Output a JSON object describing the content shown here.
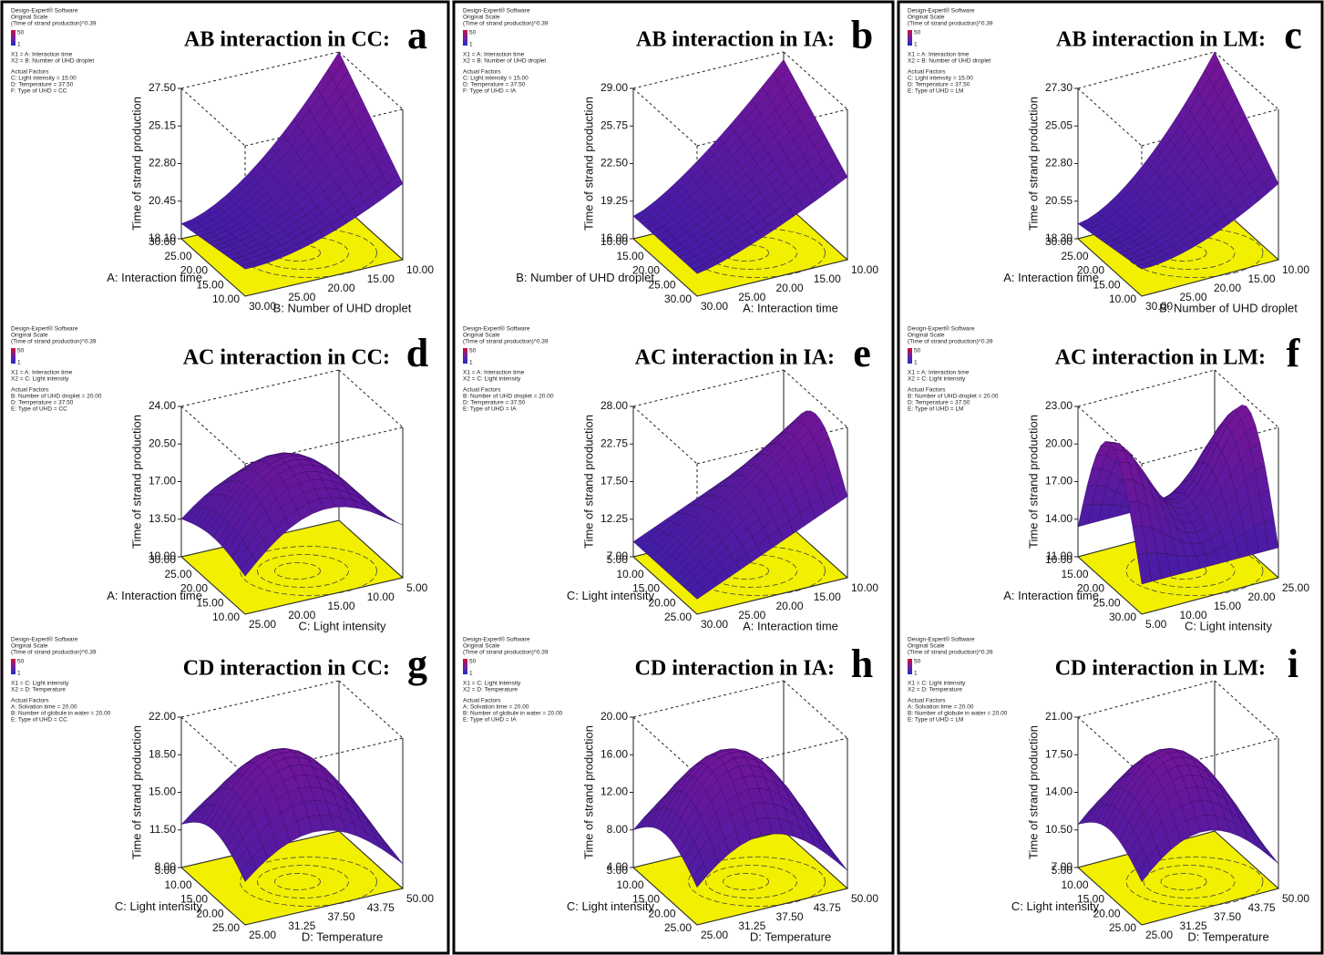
{
  "panels": [
    {
      "letter": "a",
      "title": "AB interaction in CC:",
      "legend": [
        "Design-Expert® Software",
        "Original Scale",
        "(Time of strand production)^0.39",
        "X1 = A: Interaction time",
        "X2 = B: Number of UHD droplet",
        "Actual Factors",
        "C: Light intensity = 15.00",
        "D: Temperature = 37.50",
        "F: Type of UHD = CC"
      ],
      "scale": [
        "50",
        "1"
      ],
      "z_label": "Time of strand production",
      "z_ticks": [
        "18.10",
        "20.45",
        "22.80",
        "25.15",
        "27.50"
      ],
      "left_label": "A: Interaction time",
      "left_ticks": [
        "30.00",
        "25.00",
        "20.00",
        "15.00",
        "10.00"
      ],
      "right_label": "B: Number of UHD droplet",
      "right_ticks": [
        "30.00",
        "25.00",
        "20.00",
        "15.00",
        "10.00"
      ]
    },
    {
      "letter": "b",
      "title": "AB interaction in IA:",
      "legend": [
        "Design-Expert® Software",
        "Original Scale",
        "(Time of strand production)^0.39",
        "X1 = A: Interaction time",
        "X2 = B: Number of UHD droplet",
        "Actual Factors",
        "C: Light intensity = 15.00",
        "D: Temperature = 37.50",
        "F: Type of UHD = IA"
      ],
      "scale": [
        "50",
        "1"
      ],
      "z_label": "Time of strand production",
      "z_ticks": [
        "16.00",
        "19.25",
        "22.50",
        "25.75",
        "29.00"
      ],
      "left_label": "B: Number of UHD droplet",
      "left_ticks": [
        "10.00",
        "15.00",
        "20.00",
        "25.00",
        "30.00"
      ],
      "right_label": "A: Interaction time",
      "right_ticks": [
        "30.00",
        "25.00",
        "20.00",
        "15.00",
        "10.00"
      ]
    },
    {
      "letter": "c",
      "title": "AB interaction in LM:",
      "legend": [
        "Design-Expert® Software",
        "Original Scale",
        "(Time of strand production)^0.39",
        "X1 = A: Interaction time",
        "X2 = B: Number of UHD droplet",
        "Actual Factors",
        "C: Light intensity = 15.00",
        "D: Temperature = 37.50",
        "E: Type of UHD = LM"
      ],
      "scale": [
        "50",
        "1"
      ],
      "z_label": "Time of strand production",
      "z_ticks": [
        "18.30",
        "20.55",
        "22.80",
        "25.05",
        "27.30"
      ],
      "left_label": "A: Interaction time",
      "left_ticks": [
        "30.00",
        "25.00",
        "20.00",
        "15.00",
        "10.00"
      ],
      "right_label": "B: Number of UHD droplet",
      "right_ticks": [
        "30.00",
        "25.00",
        "20.00",
        "15.00",
        "10.00"
      ]
    },
    {
      "letter": "d",
      "title": "AC interaction in CC:",
      "legend": [
        "Design-Expert® Software",
        "Original Scale",
        "(Time of strand production)^0.39",
        "X1 = A: Interaction time",
        "X2 = C: Light intensity",
        "Actual Factors",
        "B: Number of UHD droplet = 20.00",
        "D: Temperature = 37.50",
        "E: Type of UHD = CC"
      ],
      "scale": [
        "50",
        "1"
      ],
      "z_label": "Time of strand production",
      "z_ticks": [
        "10.00",
        "13.50",
        "17.00",
        "20.50",
        "24.00"
      ],
      "left_label": "A: Interaction time",
      "left_ticks": [
        "30.00",
        "25.00",
        "20.00",
        "15.00",
        "10.00"
      ],
      "right_label": "C: Light intensity",
      "right_ticks": [
        "25.00",
        "20.00",
        "15.00",
        "10.00",
        "5.00"
      ]
    },
    {
      "letter": "e",
      "title": "AC interaction in IA:",
      "legend": [
        "Design-Expert® Software",
        "Original Scale",
        "(Time of strand production)^0.39",
        "X1 = A: Interaction time",
        "X2 = C: Light intensity",
        "Actual Factors",
        "B: Number of UHD droplet = 20.00",
        "D: Temperature = 37.50",
        "E: Type of UHD = IA"
      ],
      "scale": [
        "50",
        "1"
      ],
      "z_label": "Time of strand production",
      "z_ticks": [
        "7.00",
        "12.25",
        "17.50",
        "22.75",
        "28.00"
      ],
      "left_label": "C: Light intensity",
      "left_ticks": [
        "5.00",
        "10.00",
        "15.00",
        "20.00",
        "25.00"
      ],
      "right_label": "A: Interaction time",
      "right_ticks": [
        "30.00",
        "25.00",
        "20.00",
        "15.00",
        "10.00"
      ]
    },
    {
      "letter": "f",
      "title": "AC interaction in LM:",
      "legend": [
        "Design-Expert® Software",
        "Original Scale",
        "(Time of strand production)^0.39",
        "X1 = A: Interaction time",
        "X2 = C: Light intensity",
        "Actual Factors",
        "B: Number of UHD droplet = 20.00",
        "D: Temperature = 37.50",
        "E: Type of UHD = LM"
      ],
      "scale": [
        "50",
        "1"
      ],
      "z_label": "Time of strand production",
      "z_ticks": [
        "11.00",
        "14.00",
        "17.00",
        "20.00",
        "23.00"
      ],
      "left_label": "A: Interaction time",
      "left_ticks": [
        "10.00",
        "15.00",
        "20.00",
        "25.00",
        "30.00"
      ],
      "right_label": "C: Light intensity",
      "right_ticks": [
        "5.00",
        "10.00",
        "15.00",
        "20.00",
        "25.00"
      ]
    },
    {
      "letter": "g",
      "title": "CD interaction in CC:",
      "legend": [
        "Design-Expert® Software",
        "Original Scale",
        "(Time of strand production)^0.39",
        "X1 = C: Light intensity",
        "X2 = D: Temperature",
        "Actual Factors",
        "A: Solvation time = 20.00",
        "B: Number of globule in water = 20.00",
        "E: Type of UHD = CC"
      ],
      "scale": [
        "50",
        "1"
      ],
      "z_label": "Time of strand production",
      "z_ticks": [
        "8.00",
        "11.50",
        "15.00",
        "18.50",
        "22.00"
      ],
      "left_label": "C: Light intensity",
      "left_ticks": [
        "5.00",
        "10.00",
        "15.00",
        "20.00",
        "25.00"
      ],
      "right_label": "D: Temperature",
      "right_ticks": [
        "25.00",
        "31.25",
        "37.50",
        "43.75",
        "50.00"
      ]
    },
    {
      "letter": "h",
      "title": "CD interaction in IA:",
      "legend": [
        "Design-Expert® Software",
        "Original Scale",
        "(Time of strand production)^0.39",
        "X1 = C: Light intensity",
        "X2 = D: Temperature",
        "Actual Factors",
        "A: Solvation time = 20.00",
        "B: Number of globule in water = 20.00",
        "E: Type of UHD = IA"
      ],
      "scale": [
        "50",
        "1"
      ],
      "z_label": "Time of strand production",
      "z_ticks": [
        "4.00",
        "8.00",
        "12.00",
        "16.00",
        "20.00"
      ],
      "left_label": "C: Light intensity",
      "left_ticks": [
        "5.00",
        "10.00",
        "15.00",
        "20.00",
        "25.00"
      ],
      "right_label": "D: Temperature",
      "right_ticks": [
        "25.00",
        "31.25",
        "37.50",
        "43.75",
        "50.00"
      ]
    },
    {
      "letter": "i",
      "title": "CD interaction in LM:",
      "legend": [
        "Design-Expert® Software",
        "Original Scale",
        "(Time of strand production)^0.39",
        "X1 = C: Light intensity",
        "X2 = D: Temperature",
        "Actual Factors",
        "A: Solvation time = 20.00",
        "B: Number of globule in water = 20.00",
        "E: Type of UHD = LM"
      ],
      "scale": [
        "50",
        "1"
      ],
      "z_label": "Time of strand production",
      "z_ticks": [
        "7.00",
        "10.50",
        "14.00",
        "17.50",
        "21.00"
      ],
      "left_label": "C: Light intensity",
      "left_ticks": [
        "5.00",
        "10.00",
        "15.00",
        "20.00",
        "25.00"
      ],
      "right_label": "D: Temperature",
      "right_ticks": [
        "25.00",
        "31.25",
        "37.50",
        "43.75",
        "50.00"
      ]
    }
  ]
}
